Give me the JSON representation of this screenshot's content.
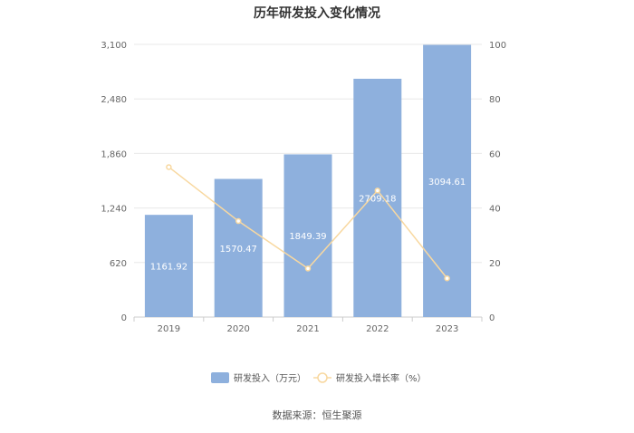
{
  "chart_data": {
    "type": "bar",
    "title": "历年研发投入变化情况",
    "categories": [
      "2019",
      "2020",
      "2021",
      "2022",
      "2023"
    ],
    "series": [
      {
        "name": "研发投入（万元）",
        "type": "bar",
        "axis": "left",
        "color": "#8eb0dd",
        "values": [
          1161.92,
          1570.47,
          1849.39,
          2709.18,
          3094.61
        ],
        "labels": [
          "1161.92",
          "1570.47",
          "1849.39",
          "2709.18",
          "3094.61"
        ]
      },
      {
        "name": "研发投入增长率（%）",
        "type": "line",
        "axis": "right",
        "color": "#f8d8a0",
        "values": [
          55,
          35.2,
          17.8,
          46.4,
          14.2
        ]
      }
    ],
    "y_left": {
      "ylim": [
        0,
        3100
      ],
      "ticks": [
        "0",
        "620",
        "1,240",
        "1,860",
        "2,480",
        "3,100"
      ]
    },
    "y_right": {
      "ylim": [
        0,
        100
      ],
      "ticks": [
        "0",
        "20",
        "40",
        "60",
        "80",
        "100"
      ]
    },
    "grid": true,
    "legend_position": "bottom-center",
    "source": "数据来源：恒生聚源"
  }
}
